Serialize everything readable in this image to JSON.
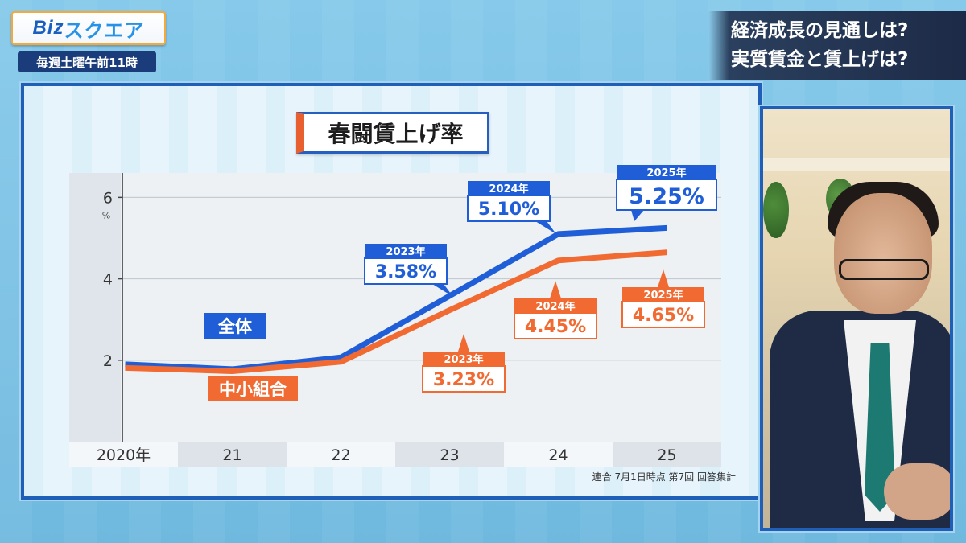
{
  "logo": {
    "text_biz": "Biz",
    "text_square": "スクエア"
  },
  "schedule": "毎週土曜午前11時",
  "headline": {
    "line1": "経済成長の見通しは?",
    "line2": "実質賃金と賃上げは?"
  },
  "source": "連合  7月1日時点  第7回 回答集計",
  "colors": {
    "overall": "#1f5ed6",
    "small": "#f06a32",
    "board_border": "#1f5fb8"
  },
  "chart_data": {
    "type": "line",
    "title": "春闘賃上げ率",
    "ylabel": "%",
    "ylim": [
      0,
      6.6
    ],
    "yticks": [
      2,
      4,
      6
    ],
    "categories": [
      "2020年",
      "21",
      "22",
      "23",
      "24",
      "25"
    ],
    "series": [
      {
        "name": "全体",
        "values": [
          1.9,
          1.78,
          2.07,
          3.58,
          5.1,
          5.25
        ]
      },
      {
        "name": "中小組合",
        "values": [
          1.81,
          1.73,
          1.96,
          3.23,
          4.45,
          4.65
        ]
      }
    ],
    "callouts": [
      {
        "series": 0,
        "index": 3,
        "year": "2023年",
        "value": "3.58%"
      },
      {
        "series": 0,
        "index": 4,
        "year": "2024年",
        "value": "5.10%"
      },
      {
        "series": 0,
        "index": 5,
        "year": "2025年",
        "value": "5.25%"
      },
      {
        "series": 1,
        "index": 3,
        "year": "2023年",
        "value": "3.23%"
      },
      {
        "series": 1,
        "index": 4,
        "year": "2024年",
        "value": "4.45%"
      },
      {
        "series": 1,
        "index": 5,
        "year": "2025年",
        "value": "4.65%"
      }
    ]
  }
}
